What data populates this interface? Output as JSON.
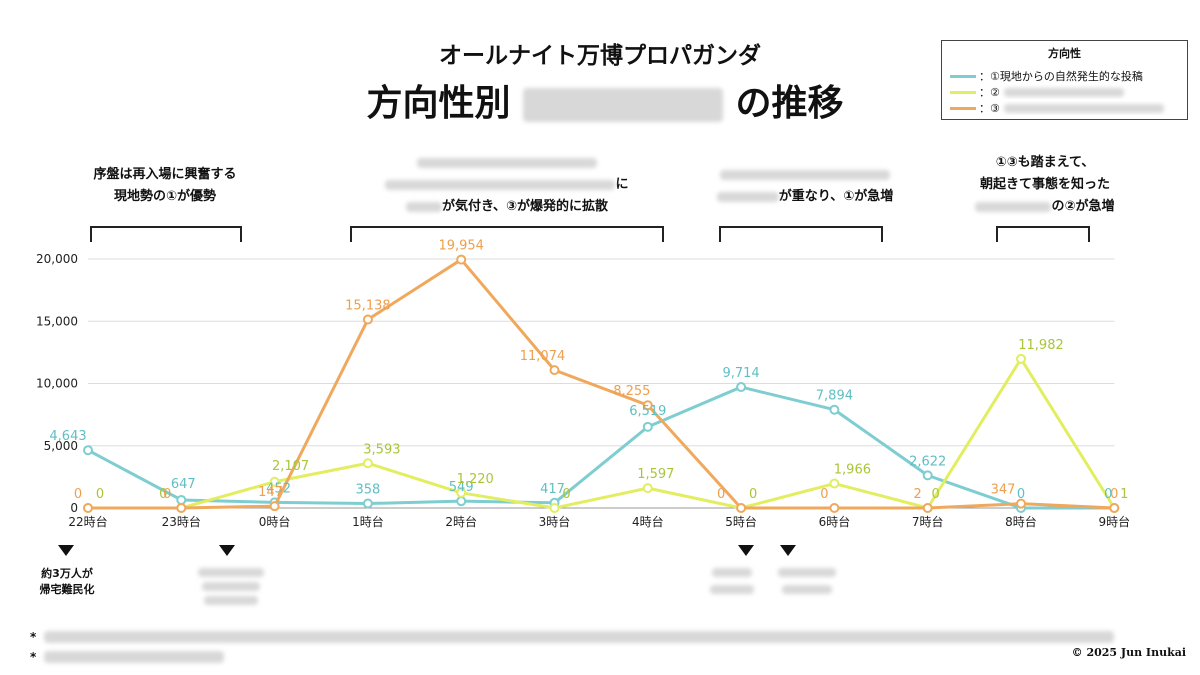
{
  "page": {
    "subtitle": "オールナイト万博プロパガンダ",
    "title_prefix": "方向性別",
    "title_suffix": "の推移",
    "copyright": "© 2025 Jun Inukai",
    "footnote_marker": "*"
  },
  "legend": {
    "title": "方向性",
    "items": [
      {
        "label": "：①現地からの自然発生的な投稿",
        "color": "#7ecdd0"
      },
      {
        "label": "：②",
        "color": "#e2ee60"
      },
      {
        "label": "：③",
        "color": "#f0a85c"
      }
    ]
  },
  "annotations": [
    {
      "lines": [
        "序盤は再入場に興奮する",
        "現地勢の①が優勢"
      ]
    },
    {
      "lines": [
        "に",
        "が気付き、③が爆発的に拡散"
      ]
    },
    {
      "lines": [
        "が重なり、①が急増"
      ]
    },
    {
      "lines": [
        "①③も踏まえて、",
        "朝起きて事態を知った",
        "の②が急増"
      ]
    }
  ],
  "notes": [
    {
      "lines": [
        "約3万人が",
        "帰宅難民化"
      ]
    }
  ],
  "chart_data": {
    "type": "line",
    "categories": [
      "22時台",
      "23時台",
      "0時台",
      "1時台",
      "2時台",
      "3時台",
      "4時台",
      "5時台",
      "6時台",
      "7時台",
      "8時台",
      "9時台"
    ],
    "ylim": [
      0,
      20000
    ],
    "yticks": [
      0,
      5000,
      10000,
      15000,
      20000
    ],
    "ytick_labels": [
      "0",
      "5,000",
      "10,000",
      "15,000",
      "20,000"
    ],
    "grid": true,
    "series": [
      {
        "name": "①現地からの自然発生的な投稿",
        "color": "#7ecdd0",
        "label_color": "#5fbfc4",
        "values": [
          4643,
          647,
          452,
          358,
          549,
          417,
          6519,
          9714,
          7894,
          2622,
          0,
          0
        ],
        "labels": [
          "4,643",
          "647",
          "452",
          "358",
          "549",
          "417",
          "6,519",
          "9,714",
          "7,894",
          "2,622",
          "0",
          "0"
        ]
      },
      {
        "name": "②",
        "color": "#e2ee60",
        "label_color": "#a9c53a",
        "values": [
          0,
          0,
          2107,
          3593,
          1220,
          0,
          1597,
          0,
          1966,
          0,
          11982,
          1
        ],
        "labels": [
          "0",
          "0",
          "2,107",
          "3,593",
          "1,220",
          "0",
          "1,597",
          "0",
          "1,966",
          "0",
          "11,982",
          "1"
        ]
      },
      {
        "name": "③",
        "color": "#f0a85c",
        "label_color": "#ee9f4f",
        "values": [
          0,
          0,
          147,
          15138,
          19954,
          11074,
          8255,
          0,
          0,
          2,
          347,
          0
        ],
        "labels": [
          "0",
          "0",
          "147",
          "15,138",
          "19,954",
          "11,074",
          "8,255",
          "0",
          "0",
          "2",
          "347",
          "0"
        ]
      }
    ]
  }
}
